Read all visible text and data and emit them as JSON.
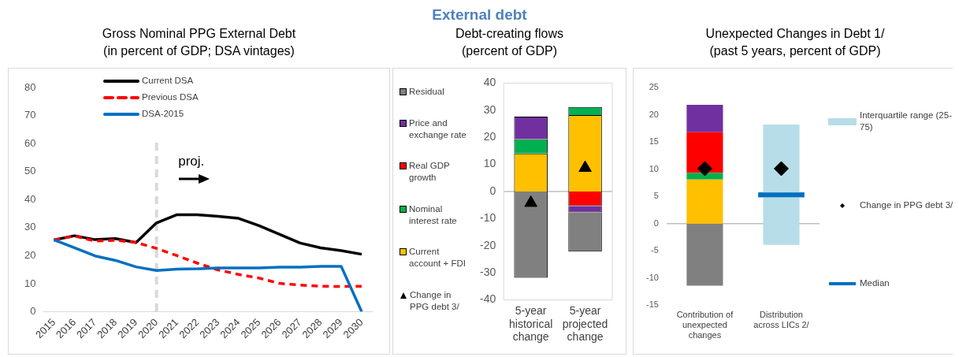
{
  "chart_data": [
    {
      "type": "line",
      "title": "Gross Nominal PPG External Debt (in percent of GDP; DSA vintages)",
      "annotations": [
        "External debt",
        "proj."
      ],
      "categories": [
        "2015",
        "2016",
        "2017",
        "2018",
        "2019",
        "2020",
        "2021",
        "2022",
        "2023",
        "2024",
        "2025",
        "2026",
        "2027",
        "2028",
        "2029",
        "2030"
      ],
      "series": [
        {
          "name": "Current DSA",
          "color": "#000000",
          "line_style": "solid",
          "values": [
            25.6,
            27.1,
            25.7,
            26.1,
            24.7,
            31.7,
            34.6,
            34.6,
            34.0,
            33.3,
            30.7,
            27.6,
            24.5,
            22.8,
            21.8,
            20.5
          ]
        },
        {
          "name": "Previous DSA",
          "color": "#ff0000",
          "line_style": "dashed",
          "values": [
            25.6,
            27.0,
            25.2,
            25.5,
            24.7,
            22.6,
            20.0,
            17.3,
            14.9,
            13.3,
            12.0,
            10.1,
            9.5,
            9.1,
            9.0,
            9.1
          ]
        },
        {
          "name": "DSA-2015",
          "color": "#0070c0",
          "line_style": "solid",
          "values": [
            25.6,
            22.8,
            19.9,
            18.3,
            16.0,
            14.7,
            15.2,
            15.3,
            15.6,
            15.6,
            15.6,
            15.9,
            15.9,
            16.2,
            16.2,
            0
          ]
        }
      ],
      "ylim": [
        0,
        80
      ],
      "yticks": [
        0,
        10,
        20,
        30,
        40,
        50,
        60,
        70,
        80
      ],
      "grid": false,
      "legend": "top left",
      "marker": "none",
      "ref_lines": [
        {
          "axis": "x",
          "value": "2020",
          "color": "#d9d9d9",
          "line_style": "dashed"
        }
      ]
    },
    {
      "type": "bar",
      "title": "Debt-creating flows (percent of GDP)",
      "stacked": true,
      "categories": [
        "5-year historical change",
        "5-year projected change"
      ],
      "series": [
        {
          "name": "Current account + FDI",
          "color": "#ffc000",
          "values": [
            14.0,
            28.2
          ]
        },
        {
          "name": "Nominal interest rate",
          "color": "#00b050",
          "values": [
            5.3,
            3.0
          ]
        },
        {
          "name": "Real GDP growth",
          "color": "#ff0000",
          "values": [
            null,
            -5.4
          ]
        },
        {
          "name": "Price and exchange rate",
          "color": "#7030a0",
          "values": [
            8.3,
            -2.3
          ]
        },
        {
          "name": "Residual",
          "color": "#808080",
          "values": [
            -31.8,
            -14.5
          ]
        },
        {
          "name": "Change in PPG debt 3/",
          "type": "scatter",
          "marker": "triangle",
          "color": "#000000",
          "x": [
            "5-year historical change",
            "5-year projected change"
          ],
          "values": [
            -4.2,
            8.7
          ]
        }
      ],
      "ylim": [
        -40,
        40
      ],
      "yticks": [
        -40,
        -30,
        -20,
        -10,
        0,
        10,
        20,
        30,
        40
      ],
      "grid": false,
      "legend": "left",
      "ref_lines": [
        {
          "axis": "y",
          "value": 0,
          "color": "#bfbfbf"
        }
      ]
    },
    {
      "type": "bar",
      "title": "Unexpected Changes in Debt 1/ (past 5 years, percent of GDP)",
      "stacked": true,
      "categories": [
        "Contribution of unexpected changes",
        "Distribution across LICs 2/"
      ],
      "series": [
        {
          "name": "Interquartile range (25-75)",
          "color": "#b7dde8",
          "base": [
            null,
            -3.9
          ],
          "values": [
            null,
            22.1
          ]
        },
        {
          "color": "#ffc000",
          "values": [
            8.1,
            null
          ]
        },
        {
          "color": "#00b050",
          "values": [
            1.2,
            null
          ]
        },
        {
          "color": "#ff0000",
          "values": [
            7.5,
            null
          ]
        },
        {
          "color": "#7030a0",
          "values": [
            5.0,
            null
          ]
        },
        {
          "color": "#808080",
          "values": [
            -11.4,
            null
          ]
        },
        {
          "name": "Change in PPG debt 3/",
          "type": "scatter",
          "marker": "diamond",
          "color": "#000000",
          "x": [
            "Contribution of unexpected changes",
            "Distribution across LICs 2/"
          ],
          "values": [
            10.1,
            10.1
          ]
        }
      ],
      "ylim": [
        -15,
        25
      ],
      "yticks": [
        -15,
        -10,
        -5,
        0,
        5,
        10,
        15,
        20,
        25
      ],
      "grid": false,
      "legend": "right",
      "ref_lines": [
        {
          "axis": "y",
          "value": 0,
          "color": "#bfbfbf"
        },
        {
          "axis": "y",
          "value": 5.3,
          "label": "Median",
          "color": "#0070c0"
        }
      ]
    }
  ]
}
